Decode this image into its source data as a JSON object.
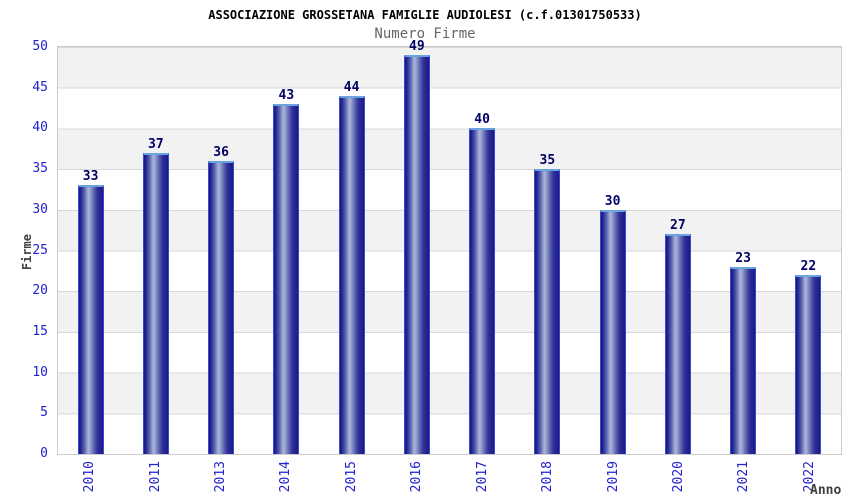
{
  "chart_data": {
    "type": "bar",
    "title": "ASSOCIAZIONE GROSSETANA FAMIGLIE AUDIOLESI (c.f.01301750533)",
    "subtitle": "Numero Firme",
    "xlabel": "Anno",
    "ylabel": "Firme",
    "categories": [
      "2010",
      "2011",
      "2013",
      "2014",
      "2015",
      "2016",
      "2017",
      "2018",
      "2019",
      "2020",
      "2021",
      "2022"
    ],
    "values": [
      33,
      37,
      36,
      43,
      44,
      49,
      40,
      35,
      30,
      27,
      23,
      22
    ],
    "ylim": [
      0,
      50
    ],
    "yticks": [
      0,
      5,
      10,
      15,
      20,
      25,
      30,
      35,
      40,
      45,
      50
    ],
    "grid": true,
    "legend_position": "none",
    "bar_value_labels_shown": true,
    "x_tick_rotation_deg": 90,
    "background_bands": "alternating gray/white every 5 units, gray band at 45-50",
    "colors": {
      "background": "#ffffff",
      "title_text": "#000000",
      "subtitle_text": "#666666",
      "axis_label_text": "#404040",
      "tick_text": "#2222cc",
      "value_text": "#000066",
      "band_gray": "#f2f2f2",
      "gridline": "#d8d8d8",
      "plot_border": "#cccccc",
      "bar_edge": "#1a1a85",
      "bar_highlight": "#a9b3da",
      "bar_cap": "#6ba3e0",
      "bar_border": "#3a4ad0"
    }
  }
}
